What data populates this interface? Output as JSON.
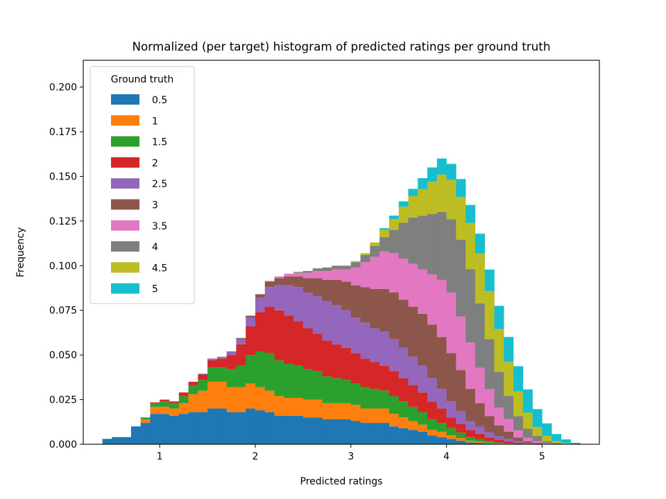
{
  "chart_data": {
    "type": "bar",
    "subtype": "stacked-histogram",
    "title": "Normalized (per target) histogram of predicted ratings per ground truth",
    "xlabel": "Predicted ratings",
    "ylabel": "Frequency",
    "xlim": [
      0.2,
      5.6
    ],
    "ylim": [
      0,
      0.215
    ],
    "xticks": [
      1,
      2,
      3,
      4,
      5
    ],
    "yticks": [
      0.0,
      0.025,
      0.05,
      0.075,
      0.1,
      0.125,
      0.15,
      0.175,
      0.2
    ],
    "ytick_labels": [
      "0.000",
      "0.025",
      "0.050",
      "0.075",
      "0.100",
      "0.125",
      "0.150",
      "0.175",
      "0.200"
    ],
    "grid": false,
    "legend": {
      "title": "Ground truth",
      "placement": "upper-left"
    },
    "bin_centers": [
      0.45,
      0.55,
      0.65,
      0.75,
      0.85,
      0.95,
      1.05,
      1.15,
      1.25,
      1.35,
      1.45,
      1.55,
      1.65,
      1.75,
      1.85,
      1.95,
      2.05,
      2.15,
      2.25,
      2.35,
      2.45,
      2.55,
      2.65,
      2.75,
      2.85,
      2.95,
      3.05,
      3.15,
      3.25,
      3.35,
      3.45,
      3.55,
      3.65,
      3.75,
      3.85,
      3.95,
      4.05,
      4.15,
      4.25,
      4.35,
      4.45,
      4.55,
      4.65,
      4.75,
      4.85,
      4.95,
      5.05,
      5.15,
      5.25,
      5.35
    ],
    "series": [
      {
        "name": "0.5",
        "color": "#1f77b4",
        "values": [
          0.003,
          0.004,
          0.004,
          0.01,
          0.012,
          0.017,
          0.017,
          0.016,
          0.017,
          0.018,
          0.018,
          0.02,
          0.02,
          0.018,
          0.018,
          0.02,
          0.019,
          0.018,
          0.016,
          0.016,
          0.016,
          0.015,
          0.015,
          0.014,
          0.014,
          0.014,
          0.013,
          0.012,
          0.012,
          0.012,
          0.01,
          0.009,
          0.008,
          0.007,
          0.005,
          0.004,
          0.003,
          0.002,
          0.001,
          0.0008,
          0.0005,
          0.0003,
          0.0002,
          0.0001,
          0,
          0,
          0,
          0,
          0,
          0
        ]
      },
      {
        "name": "1",
        "color": "#ff7f0e",
        "values": [
          0,
          0,
          0,
          0,
          0.002,
          0.004,
          0.004,
          0.004,
          0.006,
          0.01,
          0.012,
          0.015,
          0.015,
          0.014,
          0.014,
          0.014,
          0.013,
          0.012,
          0.011,
          0.01,
          0.01,
          0.01,
          0.01,
          0.009,
          0.009,
          0.009,
          0.009,
          0.008,
          0.008,
          0.008,
          0.007,
          0.006,
          0.005,
          0.004,
          0.003,
          0.003,
          0.002,
          0.0015,
          0.001,
          0.0006,
          0.0003,
          0.0002,
          0.0001,
          0,
          0,
          0,
          0,
          0,
          0,
          0
        ]
      },
      {
        "name": "1.5",
        "color": "#2ca02c",
        "values": [
          0,
          0,
          0,
          0,
          0.001,
          0.002,
          0.003,
          0.003,
          0.004,
          0.005,
          0.006,
          0.008,
          0.008,
          0.01,
          0.012,
          0.016,
          0.02,
          0.021,
          0.02,
          0.019,
          0.018,
          0.017,
          0.016,
          0.015,
          0.014,
          0.013,
          0.012,
          0.012,
          0.011,
          0.01,
          0.01,
          0.009,
          0.008,
          0.007,
          0.006,
          0.005,
          0.004,
          0.003,
          0.002,
          0.0015,
          0.001,
          0.0005,
          0.0003,
          0.0001,
          0,
          0,
          0,
          0,
          0,
          0
        ]
      },
      {
        "name": "2",
        "color": "#d62728",
        "values": [
          0,
          0,
          0,
          0,
          0,
          0.0005,
          0.001,
          0.001,
          0.002,
          0.002,
          0.003,
          0.004,
          0.005,
          0.008,
          0.012,
          0.016,
          0.022,
          0.026,
          0.028,
          0.027,
          0.025,
          0.023,
          0.021,
          0.02,
          0.019,
          0.018,
          0.017,
          0.016,
          0.015,
          0.014,
          0.014,
          0.013,
          0.012,
          0.011,
          0.01,
          0.008,
          0.006,
          0.005,
          0.004,
          0.003,
          0.002,
          0.0015,
          0.001,
          0.0005,
          0.0002,
          0,
          0,
          0,
          0,
          0
        ]
      },
      {
        "name": "2.5",
        "color": "#9467bd",
        "values": [
          0,
          0,
          0,
          0,
          0,
          0,
          0,
          0,
          0,
          0,
          0.0005,
          0.001,
          0.001,
          0.002,
          0.003,
          0.005,
          0.008,
          0.011,
          0.014,
          0.017,
          0.019,
          0.02,
          0.021,
          0.022,
          0.022,
          0.021,
          0.02,
          0.02,
          0.019,
          0.019,
          0.018,
          0.017,
          0.016,
          0.015,
          0.013,
          0.011,
          0.009,
          0.007,
          0.005,
          0.004,
          0.003,
          0.002,
          0.0015,
          0.001,
          0.0005,
          0.0002,
          0,
          0,
          0,
          0
        ]
      },
      {
        "name": "3",
        "color": "#8c564b",
        "values": [
          0,
          0,
          0,
          0,
          0,
          0,
          0,
          0,
          0,
          0,
          0,
          0,
          0,
          0,
          0.0005,
          0.001,
          0.002,
          0.003,
          0.004,
          0.005,
          0.006,
          0.008,
          0.01,
          0.012,
          0.014,
          0.016,
          0.018,
          0.02,
          0.022,
          0.024,
          0.026,
          0.027,
          0.028,
          0.029,
          0.03,
          0.029,
          0.027,
          0.023,
          0.018,
          0.013,
          0.009,
          0.006,
          0.004,
          0.002,
          0.001,
          0.0005,
          0.0002,
          0,
          0,
          0
        ]
      },
      {
        "name": "3.5",
        "color": "#e377c2",
        "values": [
          0,
          0,
          0,
          0,
          0,
          0,
          0,
          0,
          0,
          0,
          0,
          0,
          0,
          0,
          0,
          0,
          0,
          0.0005,
          0.001,
          0.0015,
          0.002,
          0.003,
          0.004,
          0.005,
          0.006,
          0.007,
          0.01,
          0.014,
          0.018,
          0.021,
          0.022,
          0.023,
          0.024,
          0.025,
          0.028,
          0.032,
          0.034,
          0.03,
          0.026,
          0.02,
          0.015,
          0.01,
          0.007,
          0.004,
          0.002,
          0.001,
          0.0005,
          0.0002,
          0,
          0
        ]
      },
      {
        "name": "4",
        "color": "#7f7f7f",
        "values": [
          0,
          0,
          0,
          0,
          0,
          0,
          0,
          0,
          0,
          0,
          0,
          0,
          0,
          0,
          0,
          0,
          0,
          0,
          0,
          0,
          0.0005,
          0.001,
          0.0015,
          0.002,
          0.002,
          0.002,
          0.003,
          0.004,
          0.006,
          0.008,
          0.013,
          0.02,
          0.026,
          0.03,
          0.034,
          0.038,
          0.041,
          0.043,
          0.041,
          0.036,
          0.028,
          0.02,
          0.013,
          0.008,
          0.005,
          0.003,
          0.001,
          0.0005,
          0.0002,
          0
        ]
      },
      {
        "name": "4.5",
        "color": "#bcbd22",
        "values": [
          0,
          0,
          0,
          0,
          0,
          0,
          0,
          0,
          0,
          0,
          0,
          0,
          0,
          0,
          0,
          0,
          0,
          0,
          0,
          0,
          0,
          0,
          0,
          0,
          0,
          0,
          0.0005,
          0.001,
          0.002,
          0.004,
          0.006,
          0.009,
          0.012,
          0.015,
          0.018,
          0.021,
          0.022,
          0.024,
          0.026,
          0.028,
          0.027,
          0.024,
          0.019,
          0.014,
          0.009,
          0.005,
          0.003,
          0.001,
          0.0005,
          0
        ]
      },
      {
        "name": "5",
        "color": "#17becf",
        "values": [
          0,
          0,
          0,
          0,
          0,
          0,
          0,
          0,
          0,
          0,
          0,
          0,
          0,
          0,
          0,
          0,
          0,
          0,
          0,
          0,
          0,
          0,
          0,
          0,
          0,
          0,
          0,
          0,
          0,
          0.001,
          0.002,
          0.003,
          0.004,
          0.006,
          0.008,
          0.009,
          0.009,
          0.01,
          0.01,
          0.011,
          0.012,
          0.013,
          0.014,
          0.014,
          0.013,
          0.01,
          0.007,
          0.004,
          0.002,
          0.0008
        ]
      }
    ]
  }
}
